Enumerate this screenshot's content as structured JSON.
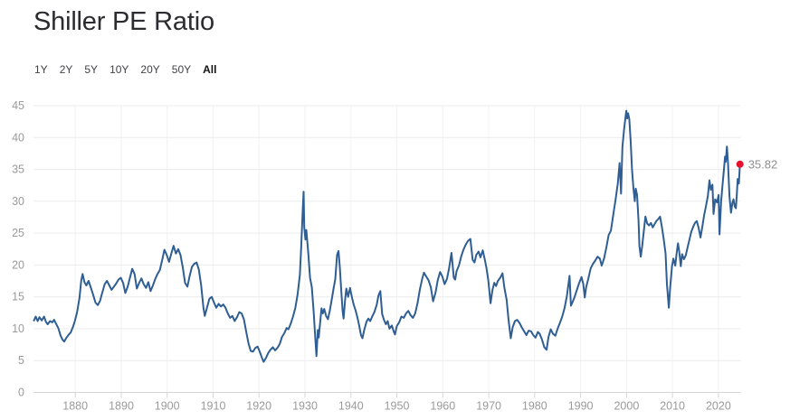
{
  "title": "Shiller PE Ratio",
  "ranges": {
    "items": [
      {
        "label": "1Y",
        "active": false
      },
      {
        "label": "2Y",
        "active": false
      },
      {
        "label": "5Y",
        "active": false
      },
      {
        "label": "10Y",
        "active": false
      },
      {
        "label": "20Y",
        "active": false
      },
      {
        "label": "50Y",
        "active": false
      },
      {
        "label": "All",
        "active": true
      }
    ]
  },
  "chart_data": {
    "type": "line",
    "title": "Shiller PE Ratio",
    "series_name": "Shiller PE",
    "xlim": [
      1870.9,
      2024.85
    ],
    "ylim": [
      0,
      45
    ],
    "x_ticks": [
      1880,
      1890,
      1900,
      1910,
      1920,
      1930,
      1940,
      1950,
      1960,
      1970,
      1980,
      1990,
      2000,
      2010,
      2020
    ],
    "y_ticks": [
      0,
      5,
      10,
      15,
      20,
      25,
      30,
      35,
      40,
      45
    ],
    "grid": true,
    "legend": false,
    "latest": {
      "value": 35.82,
      "label": "35.82",
      "x": 2024.7
    },
    "colors": {
      "line": "#2f5e94",
      "marker": "#e8112d",
      "grid_h": "#ececec",
      "grid_v": "#f2f2f2",
      "axis_line": "#d4d4d4",
      "tick": "#d6d6d6",
      "axis_label": "#9a9a9a",
      "value_label": "#8f8f8f"
    },
    "points": [
      [
        1871.0,
        11.3
      ],
      [
        1871.4,
        11.9
      ],
      [
        1871.8,
        11.2
      ],
      [
        1872.2,
        11.8
      ],
      [
        1872.7,
        11.3
      ],
      [
        1873.2,
        11.9
      ],
      [
        1873.6,
        11.1
      ],
      [
        1874.0,
        10.7
      ],
      [
        1874.5,
        11.2
      ],
      [
        1875.0,
        11.0
      ],
      [
        1875.4,
        11.4
      ],
      [
        1875.8,
        10.8
      ],
      [
        1876.3,
        10.1
      ],
      [
        1876.8,
        8.9
      ],
      [
        1877.2,
        8.3
      ],
      [
        1877.6,
        8.0
      ],
      [
        1878.1,
        8.6
      ],
      [
        1878.6,
        9.1
      ],
      [
        1879.0,
        9.4
      ],
      [
        1879.5,
        10.3
      ],
      [
        1879.9,
        11.2
      ],
      [
        1880.4,
        12.6
      ],
      [
        1880.9,
        14.8
      ],
      [
        1881.3,
        17.6
      ],
      [
        1881.6,
        18.6
      ],
      [
        1882.0,
        17.3
      ],
      [
        1882.4,
        16.8
      ],
      [
        1882.9,
        17.5
      ],
      [
        1883.4,
        16.4
      ],
      [
        1883.9,
        15.3
      ],
      [
        1884.4,
        14.1
      ],
      [
        1884.9,
        13.7
      ],
      [
        1885.4,
        14.4
      ],
      [
        1885.9,
        15.7
      ],
      [
        1886.4,
        17.0
      ],
      [
        1886.9,
        17.5
      ],
      [
        1887.4,
        16.8
      ],
      [
        1887.9,
        16.1
      ],
      [
        1888.4,
        16.6
      ],
      [
        1888.9,
        17.1
      ],
      [
        1889.4,
        17.7
      ],
      [
        1889.9,
        18.0
      ],
      [
        1890.4,
        17.2
      ],
      [
        1890.9,
        15.6
      ],
      [
        1891.4,
        16.6
      ],
      [
        1891.9,
        18.0
      ],
      [
        1892.4,
        19.4
      ],
      [
        1892.9,
        18.6
      ],
      [
        1893.4,
        16.3
      ],
      [
        1893.9,
        17.2
      ],
      [
        1894.4,
        17.9
      ],
      [
        1894.9,
        17.0
      ],
      [
        1895.4,
        16.4
      ],
      [
        1895.9,
        17.3
      ],
      [
        1896.4,
        15.9
      ],
      [
        1896.9,
        16.8
      ],
      [
        1897.4,
        17.8
      ],
      [
        1897.9,
        18.6
      ],
      [
        1898.4,
        19.2
      ],
      [
        1898.9,
        20.7
      ],
      [
        1899.4,
        22.4
      ],
      [
        1899.9,
        21.6
      ],
      [
        1900.4,
        20.5
      ],
      [
        1900.9,
        21.8
      ],
      [
        1901.4,
        23.0
      ],
      [
        1901.9,
        21.8
      ],
      [
        1902.4,
        22.5
      ],
      [
        1902.9,
        21.6
      ],
      [
        1903.4,
        19.6
      ],
      [
        1903.9,
        17.2
      ],
      [
        1904.4,
        16.6
      ],
      [
        1904.9,
        18.3
      ],
      [
        1905.4,
        19.7
      ],
      [
        1905.9,
        20.2
      ],
      [
        1906.4,
        20.4
      ],
      [
        1906.9,
        19.3
      ],
      [
        1907.4,
        16.8
      ],
      [
        1907.9,
        13.3
      ],
      [
        1908.2,
        12.0
      ],
      [
        1908.7,
        13.4
      ],
      [
        1909.2,
        14.7
      ],
      [
        1909.7,
        15.0
      ],
      [
        1910.2,
        14.1
      ],
      [
        1910.7,
        13.3
      ],
      [
        1911.2,
        13.9
      ],
      [
        1911.7,
        13.5
      ],
      [
        1912.2,
        13.8
      ],
      [
        1912.7,
        13.3
      ],
      [
        1913.2,
        12.4
      ],
      [
        1913.7,
        11.7
      ],
      [
        1914.2,
        12.0
      ],
      [
        1914.7,
        11.2
      ],
      [
        1915.2,
        11.8
      ],
      [
        1915.7,
        12.6
      ],
      [
        1916.2,
        12.4
      ],
      [
        1916.7,
        11.5
      ],
      [
        1917.2,
        9.6
      ],
      [
        1917.7,
        7.7
      ],
      [
        1918.2,
        6.5
      ],
      [
        1918.7,
        6.4
      ],
      [
        1919.2,
        7.0
      ],
      [
        1919.7,
        7.2
      ],
      [
        1920.2,
        6.3
      ],
      [
        1920.6,
        5.5
      ],
      [
        1921.0,
        4.8
      ],
      [
        1921.5,
        5.4
      ],
      [
        1922.0,
        6.2
      ],
      [
        1922.5,
        6.7
      ],
      [
        1923.0,
        7.1
      ],
      [
        1923.5,
        6.6
      ],
      [
        1924.0,
        7.0
      ],
      [
        1924.5,
        7.6
      ],
      [
        1925.0,
        8.7
      ],
      [
        1925.5,
        9.3
      ],
      [
        1926.0,
        10.1
      ],
      [
        1926.4,
        9.9
      ],
      [
        1926.9,
        10.8
      ],
      [
        1927.4,
        11.9
      ],
      [
        1927.9,
        13.3
      ],
      [
        1928.4,
        15.4
      ],
      [
        1928.9,
        18.5
      ],
      [
        1929.2,
        23.0
      ],
      [
        1929.5,
        28.5
      ],
      [
        1929.7,
        31.5
      ],
      [
        1929.85,
        26.0
      ],
      [
        1930.1,
        24.0
      ],
      [
        1930.3,
        25.5
      ],
      [
        1930.7,
        22.0
      ],
      [
        1931.1,
        18.0
      ],
      [
        1931.5,
        16.5
      ],
      [
        1931.9,
        12.5
      ],
      [
        1932.2,
        9.0
      ],
      [
        1932.5,
        5.7
      ],
      [
        1932.8,
        9.8
      ],
      [
        1933.0,
        8.6
      ],
      [
        1933.3,
        11.0
      ],
      [
        1933.6,
        13.2
      ],
      [
        1933.9,
        12.4
      ],
      [
        1934.2,
        13.1
      ],
      [
        1934.6,
        12.0
      ],
      [
        1935.0,
        11.5
      ],
      [
        1935.4,
        12.8
      ],
      [
        1935.8,
        14.5
      ],
      [
        1936.2,
        16.2
      ],
      [
        1936.6,
        17.8
      ],
      [
        1937.0,
        21.6
      ],
      [
        1937.3,
        22.2
      ],
      [
        1937.6,
        19.5
      ],
      [
        1937.9,
        16.0
      ],
      [
        1938.2,
        12.8
      ],
      [
        1938.4,
        11.6
      ],
      [
        1938.7,
        14.3
      ],
      [
        1939.0,
        16.3
      ],
      [
        1939.4,
        15.0
      ],
      [
        1939.8,
        16.4
      ],
      [
        1940.2,
        15.0
      ],
      [
        1940.6,
        13.8
      ],
      [
        1941.0,
        12.9
      ],
      [
        1941.4,
        11.8
      ],
      [
        1941.8,
        10.5
      ],
      [
        1942.2,
        9.0
      ],
      [
        1942.5,
        8.5
      ],
      [
        1942.9,
        9.8
      ],
      [
        1943.4,
        11.1
      ],
      [
        1943.8,
        11.6
      ],
      [
        1944.2,
        11.2
      ],
      [
        1944.7,
        12.0
      ],
      [
        1945.1,
        12.6
      ],
      [
        1945.6,
        13.7
      ],
      [
        1946.0,
        15.2
      ],
      [
        1946.4,
        15.9
      ],
      [
        1946.8,
        12.3
      ],
      [
        1947.2,
        11.4
      ],
      [
        1947.6,
        10.7
      ],
      [
        1948.0,
        11.2
      ],
      [
        1948.4,
        10.0
      ],
      [
        1948.9,
        10.5
      ],
      [
        1949.3,
        9.6
      ],
      [
        1949.6,
        9.1
      ],
      [
        1950.0,
        10.4
      ],
      [
        1950.5,
        11.0
      ],
      [
        1951.0,
        11.9
      ],
      [
        1951.5,
        11.7
      ],
      [
        1952.0,
        12.4
      ],
      [
        1952.5,
        12.8
      ],
      [
        1953.0,
        12.1
      ],
      [
        1953.5,
        11.7
      ],
      [
        1954.0,
        12.4
      ],
      [
        1954.5,
        14.0
      ],
      [
        1955.0,
        16.1
      ],
      [
        1955.5,
        17.8
      ],
      [
        1955.9,
        18.8
      ],
      [
        1956.4,
        18.2
      ],
      [
        1956.9,
        17.6
      ],
      [
        1957.4,
        16.5
      ],
      [
        1957.9,
        14.3
      ],
      [
        1958.4,
        15.6
      ],
      [
        1958.9,
        17.6
      ],
      [
        1959.4,
        18.9
      ],
      [
        1959.9,
        18.2
      ],
      [
        1960.4,
        17.0
      ],
      [
        1960.9,
        17.8
      ],
      [
        1961.4,
        19.6
      ],
      [
        1961.9,
        21.9
      ],
      [
        1962.4,
        18.0
      ],
      [
        1962.7,
        17.7
      ],
      [
        1963.0,
        19.0
      ],
      [
        1963.5,
        19.9
      ],
      [
        1964.0,
        21.3
      ],
      [
        1964.5,
        22.4
      ],
      [
        1965.0,
        23.2
      ],
      [
        1965.5,
        23.8
      ],
      [
        1966.0,
        24.1
      ],
      [
        1966.5,
        20.8
      ],
      [
        1966.9,
        20.4
      ],
      [
        1967.3,
        21.6
      ],
      [
        1967.8,
        22.1
      ],
      [
        1968.2,
        21.2
      ],
      [
        1968.7,
        22.3
      ],
      [
        1969.1,
        21.0
      ],
      [
        1969.5,
        19.6
      ],
      [
        1969.9,
        17.6
      ],
      [
        1970.4,
        14.0
      ],
      [
        1970.8,
        16.0
      ],
      [
        1971.2,
        17.2
      ],
      [
        1971.6,
        16.7
      ],
      [
        1972.0,
        17.5
      ],
      [
        1972.5,
        18.0
      ],
      [
        1973.0,
        18.7
      ],
      [
        1973.4,
        16.5
      ],
      [
        1973.9,
        14.5
      ],
      [
        1974.3,
        11.5
      ],
      [
        1974.8,
        8.5
      ],
      [
        1975.2,
        10.2
      ],
      [
        1975.7,
        11.2
      ],
      [
        1976.2,
        11.4
      ],
      [
        1976.7,
        10.9
      ],
      [
        1977.2,
        10.2
      ],
      [
        1977.7,
        9.6
      ],
      [
        1978.2,
        9.0
      ],
      [
        1978.7,
        9.7
      ],
      [
        1979.2,
        9.6
      ],
      [
        1979.7,
        9.0
      ],
      [
        1980.2,
        8.6
      ],
      [
        1980.7,
        9.5
      ],
      [
        1981.1,
        9.2
      ],
      [
        1981.6,
        8.3
      ],
      [
        1982.1,
        7.1
      ],
      [
        1982.6,
        6.7
      ],
      [
        1983.0,
        8.7
      ],
      [
        1983.5,
        9.9
      ],
      [
        1984.0,
        9.2
      ],
      [
        1984.5,
        8.9
      ],
      [
        1985.0,
        10.0
      ],
      [
        1985.5,
        10.9
      ],
      [
        1986.0,
        11.9
      ],
      [
        1986.5,
        13.2
      ],
      [
        1987.0,
        15.1
      ],
      [
        1987.6,
        18.3
      ],
      [
        1987.9,
        13.6
      ],
      [
        1988.2,
        14.1
      ],
      [
        1988.7,
        15.0
      ],
      [
        1989.2,
        16.1
      ],
      [
        1989.7,
        17.2
      ],
      [
        1990.2,
        18.1
      ],
      [
        1990.6,
        17.0
      ],
      [
        1990.9,
        14.9
      ],
      [
        1991.2,
        16.5
      ],
      [
        1991.7,
        17.9
      ],
      [
        1992.2,
        19.5
      ],
      [
        1992.7,
        20.2
      ],
      [
        1993.2,
        20.7
      ],
      [
        1993.7,
        21.3
      ],
      [
        1994.2,
        21.0
      ],
      [
        1994.6,
        19.9
      ],
      [
        1995.1,
        21.0
      ],
      [
        1995.6,
        22.7
      ],
      [
        1996.1,
        24.7
      ],
      [
        1996.6,
        25.4
      ],
      [
        1997.1,
        27.8
      ],
      [
        1997.6,
        30.2
      ],
      [
        1998.1,
        32.8
      ],
      [
        1998.5,
        36.0
      ],
      [
        1998.8,
        31.2
      ],
      [
        1999.1,
        38.5
      ],
      [
        1999.5,
        41.5
      ],
      [
        1999.95,
        44.2
      ],
      [
        2000.15,
        43.0
      ],
      [
        2000.35,
        43.8
      ],
      [
        2000.6,
        42.9
      ],
      [
        2000.9,
        39.5
      ],
      [
        2001.2,
        35.0
      ],
      [
        2001.5,
        32.0
      ],
      [
        2001.8,
        30.0
      ],
      [
        2002.0,
        32.0
      ],
      [
        2002.3,
        31.0
      ],
      [
        2002.6,
        27.0
      ],
      [
        2002.8,
        23.0
      ],
      [
        2003.1,
        21.3
      ],
      [
        2003.4,
        22.9
      ],
      [
        2003.8,
        25.5
      ],
      [
        2004.1,
        27.6
      ],
      [
        2004.5,
        26.5
      ],
      [
        2004.9,
        26.2
      ],
      [
        2005.3,
        26.6
      ],
      [
        2005.7,
        25.9
      ],
      [
        2006.1,
        26.4
      ],
      [
        2006.5,
        26.9
      ],
      [
        2006.9,
        27.2
      ],
      [
        2007.3,
        27.6
      ],
      [
        2007.7,
        26.0
      ],
      [
        2008.1,
        24.0
      ],
      [
        2008.5,
        21.8
      ],
      [
        2008.8,
        17.0
      ],
      [
        2009.2,
        13.3
      ],
      [
        2009.5,
        16.5
      ],
      [
        2009.9,
        19.8
      ],
      [
        2010.2,
        21.0
      ],
      [
        2010.6,
        19.9
      ],
      [
        2010.9,
        21.8
      ],
      [
        2011.2,
        23.4
      ],
      [
        2011.5,
        22.0
      ],
      [
        2011.8,
        19.8
      ],
      [
        2012.1,
        21.7
      ],
      [
        2012.5,
        20.9
      ],
      [
        2012.9,
        21.5
      ],
      [
        2013.3,
        22.8
      ],
      [
        2013.7,
        24.0
      ],
      [
        2014.1,
        25.2
      ],
      [
        2014.5,
        26.0
      ],
      [
        2014.9,
        26.6
      ],
      [
        2015.3,
        26.9
      ],
      [
        2015.7,
        25.8
      ],
      [
        2016.1,
        24.3
      ],
      [
        2016.5,
        26.0
      ],
      [
        2016.9,
        27.8
      ],
      [
        2017.3,
        29.3
      ],
      [
        2017.7,
        30.8
      ],
      [
        2018.05,
        33.3
      ],
      [
        2018.35,
        31.8
      ],
      [
        2018.7,
        32.6
      ],
      [
        2018.95,
        28.0
      ],
      [
        2019.3,
        30.3
      ],
      [
        2019.7,
        29.8
      ],
      [
        2020.05,
        31.0
      ],
      [
        2020.25,
        24.8
      ],
      [
        2020.6,
        30.0
      ],
      [
        2020.9,
        32.5
      ],
      [
        2021.2,
        35.0
      ],
      [
        2021.45,
        37.0
      ],
      [
        2021.6,
        36.2
      ],
      [
        2021.85,
        38.6
      ],
      [
        2022.1,
        36.0
      ],
      [
        2022.4,
        30.8
      ],
      [
        2022.75,
        28.2
      ],
      [
        2023.05,
        29.8
      ],
      [
        2023.3,
        30.3
      ],
      [
        2023.55,
        29.2
      ],
      [
        2023.8,
        28.9
      ],
      [
        2024.0,
        31.0
      ],
      [
        2024.2,
        33.5
      ],
      [
        2024.45,
        32.8
      ],
      [
        2024.7,
        35.82
      ]
    ]
  }
}
